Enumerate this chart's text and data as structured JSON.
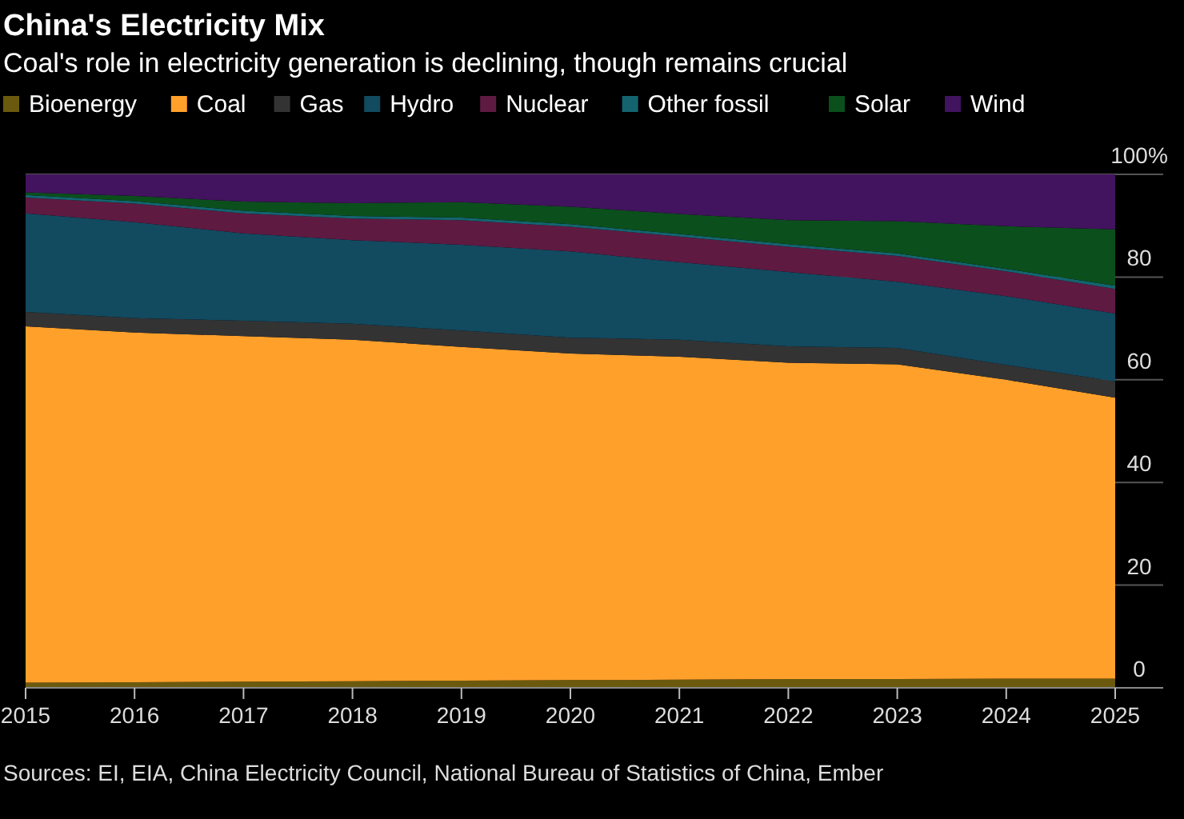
{
  "chart_data": {
    "type": "area",
    "stacked": true,
    "title": "China's Electricity Mix",
    "subtitle": "Coal's role in electricity generation is declining, though remains crucial",
    "x": [
      2015,
      2016,
      2017,
      2018,
      2019,
      2020,
      2021,
      2022,
      2023,
      2024,
      2025
    ],
    "xlim": [
      2015,
      2025
    ],
    "xticks": [
      2015,
      2016,
      2017,
      2018,
      2019,
      2020,
      2021,
      2022,
      2023,
      2024,
      2025
    ],
    "ylim": [
      0,
      100
    ],
    "yticks": [
      0,
      20,
      40,
      60,
      80,
      {
        "value": 100,
        "label": "100%"
      }
    ],
    "grid": "y",
    "legend": "top",
    "series": [
      {
        "name": "Bioenergy",
        "color": "#6b5a0e",
        "values": [
          1.0,
          1.1,
          1.2,
          1.3,
          1.4,
          1.5,
          1.6,
          1.7,
          1.7,
          1.8,
          1.8
        ]
      },
      {
        "name": "Coal",
        "color": "#ffa02b",
        "values": [
          69.4,
          68.1,
          67.3,
          66.5,
          65.0,
          63.6,
          62.9,
          61.6,
          61.3,
          58.2,
          54.7
        ]
      },
      {
        "name": "Gas",
        "color": "#333333",
        "values": [
          2.8,
          2.8,
          3.0,
          3.1,
          3.2,
          3.1,
          3.3,
          3.2,
          3.2,
          2.9,
          3.2
        ]
      },
      {
        "name": "Hydro",
        "color": "#124a60",
        "values": [
          19.2,
          18.7,
          17.0,
          16.3,
          16.7,
          16.8,
          15.1,
          14.5,
          12.9,
          13.4,
          13.2
        ]
      },
      {
        "name": "Nuclear",
        "color": "#5f1a42",
        "values": [
          3.1,
          3.6,
          3.9,
          4.2,
          4.8,
          4.8,
          5.0,
          4.9,
          5.0,
          4.8,
          4.8
        ]
      },
      {
        "name": "Other fossil",
        "color": "#146470",
        "values": [
          0.5,
          0.5,
          0.5,
          0.5,
          0.5,
          0.5,
          0.5,
          0.5,
          0.5,
          0.5,
          0.6
        ]
      },
      {
        "name": "Solar",
        "color": "#0b4f1c",
        "values": [
          0.5,
          1.0,
          1.8,
          2.5,
          3.0,
          3.4,
          3.9,
          4.7,
          6.3,
          8.3,
          11.0
        ]
      },
      {
        "name": "Wind",
        "color": "#42135e",
        "values": [
          3.5,
          4.2,
          5.3,
          5.6,
          5.4,
          6.3,
          7.7,
          8.9,
          9.1,
          10.1,
          10.7
        ]
      }
    ],
    "annotations": [
      "Sources: EI, EIA, China Electricity Council, National Bureau of Statistics of China, Ember"
    ]
  }
}
